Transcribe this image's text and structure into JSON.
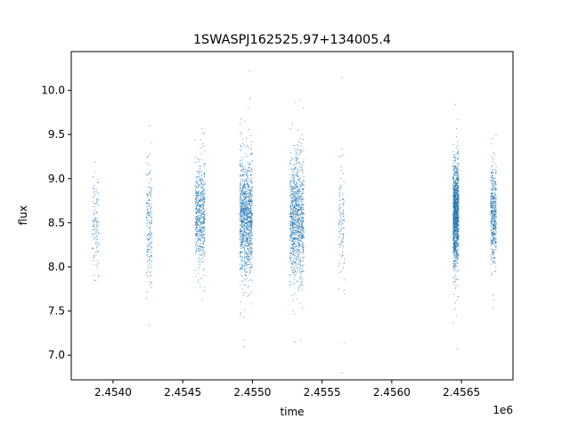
{
  "chart_data": {
    "type": "scatter",
    "title": "1SWASPJ162525.97+134005.4",
    "xlabel": "time",
    "ylabel": "flux",
    "x_offset_label": "1e6",
    "xlim": [
      2.4537,
      2.45687
    ],
    "ylim": [
      6.72,
      10.44
    ],
    "x_ticks": [
      2.454,
      2.4545,
      2.455,
      2.4555,
      2.456,
      2.4565
    ],
    "x_tick_labels": [
      "2.4540",
      "2.4545",
      "2.4550",
      "2.4555",
      "2.4560",
      "2.4565"
    ],
    "y_ticks": [
      7.0,
      7.5,
      8.0,
      8.5,
      9.0,
      9.5,
      10.0
    ],
    "y_tick_labels": [
      "7.0",
      "7.5",
      "8.0",
      "8.5",
      "9.0",
      "9.5",
      "10.0"
    ],
    "grid": false,
    "point_color": "#1f77b4",
    "observing_seasons": [
      {
        "x_start": 2.45385,
        "x_end": 2.4539,
        "y_center": 8.5,
        "y_spread": 0.27,
        "n": 120
      },
      {
        "x_start": 2.45424,
        "x_end": 2.45428,
        "y_center": 8.45,
        "y_spread": 0.3,
        "n": 200
      },
      {
        "x_start": 2.45459,
        "x_end": 2.45466,
        "y_center": 8.6,
        "y_spread": 0.3,
        "n": 600
      },
      {
        "x_start": 2.45491,
        "x_end": 2.455,
        "y_center": 8.55,
        "y_spread": 0.33,
        "n": 1200
      },
      {
        "x_start": 2.45527,
        "x_end": 2.45537,
        "y_center": 8.55,
        "y_spread": 0.33,
        "n": 1100
      },
      {
        "x_start": 2.45562,
        "x_end": 2.45566,
        "y_center": 8.5,
        "y_spread": 0.3,
        "n": 120
      },
      {
        "x_start": 2.45644,
        "x_end": 2.45648,
        "y_center": 8.6,
        "y_spread": 0.28,
        "n": 1400
      },
      {
        "x_start": 2.45671,
        "x_end": 2.45675,
        "y_center": 8.6,
        "y_spread": 0.27,
        "n": 500
      }
    ]
  }
}
